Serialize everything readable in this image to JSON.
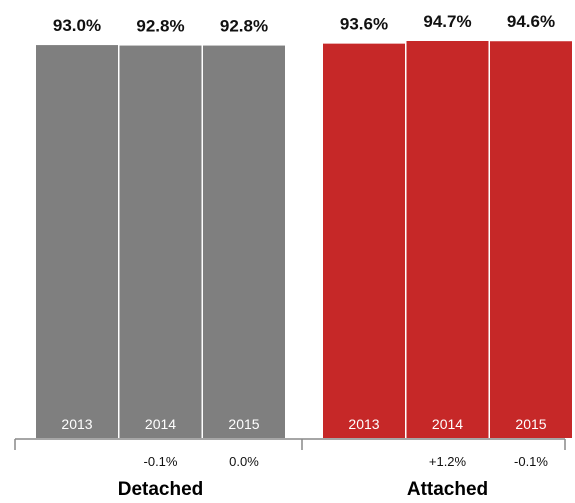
{
  "chart_data": {
    "type": "bar",
    "title": "",
    "xlabel": "",
    "ylabel": "",
    "grid": false,
    "legend": "none",
    "groups": [
      {
        "name": "Detached",
        "color": "#7f7f7f",
        "bars": [
          {
            "year": "2013",
            "value": 93.0,
            "value_label": "93.0%",
            "change_label": ""
          },
          {
            "year": "2014",
            "value": 92.8,
            "value_label": "92.8%",
            "change_label": "-0.1%"
          },
          {
            "year": "2015",
            "value": 92.8,
            "value_label": "92.8%",
            "change_label": "0.0%"
          }
        ]
      },
      {
        "name": "Attached",
        "color": "#c62828",
        "bars": [
          {
            "year": "2013",
            "value": 93.6,
            "value_label": "93.6%",
            "change_label": ""
          },
          {
            "year": "2014",
            "value": 94.7,
            "value_label": "94.7%",
            "change_label": "+1.2%"
          },
          {
            "year": "2015",
            "value": 94.6,
            "value_label": "94.6%",
            "change_label": "-0.1%"
          }
        ]
      }
    ]
  }
}
